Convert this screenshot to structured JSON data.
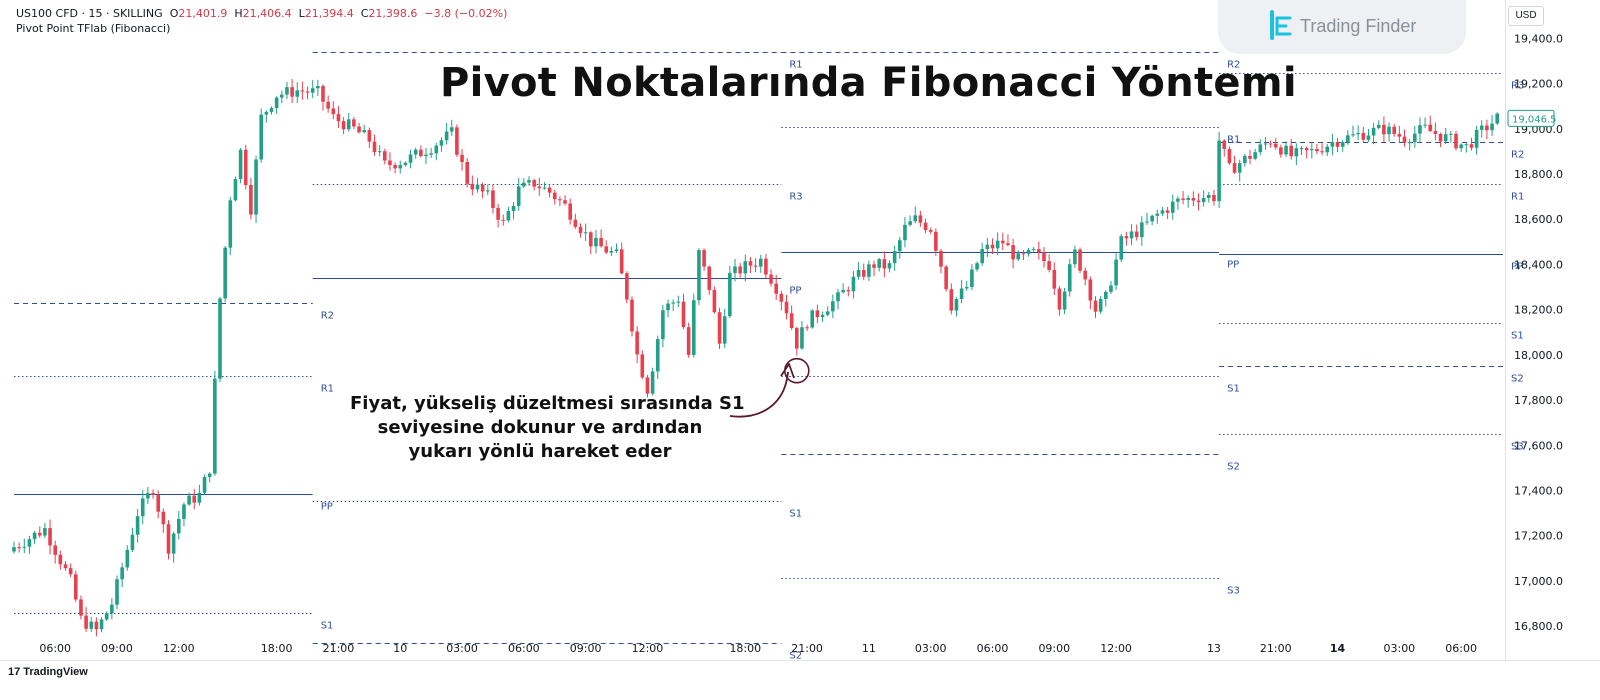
{
  "header": {
    "symbol": "US100 CFD · 15 · SKILLING",
    "o_label": "O",
    "o": "21,401.9",
    "h_label": "H",
    "h": "21,406.4",
    "l_label": "L",
    "l": "21,394.4",
    "c_label": "C",
    "c": "21,398.6",
    "change": "−3.8 (−0.02%)",
    "indicator": "Pivot Point TFlab (Fibonacci)"
  },
  "title": "Pivot Noktalarında Fibonacci Yöntemi",
  "annotation": {
    "lines": [
      "Fiyat, yükseliş düzeltmesi sırasında S1",
      "seviyesine dokunur ve ardından",
      "yukarı yönlü hareket eder"
    ]
  },
  "brand": {
    "name": "Trading Finder"
  },
  "currency": "USD",
  "footer": {
    "brand": "TradingView",
    "mark": "17"
  },
  "colors": {
    "up": "#22a087",
    "down": "#e8404f",
    "pivot": "#2e4d99",
    "price_badge": "#22a087"
  },
  "chart_data": {
    "type": "candlestick",
    "symbol": "US100 CFD",
    "timeframe": "15",
    "ylim": [
      16650,
      19570
    ],
    "y_ticks": [
      {
        "value": 19400,
        "label": "19,400.0"
      },
      {
        "value": 19200,
        "label": "19,200.0"
      },
      {
        "value": 19000,
        "label": "19,000.0"
      },
      {
        "value": 18800,
        "label": "18,800.0"
      },
      {
        "value": 18600,
        "label": "18,600.0"
      },
      {
        "value": 18400,
        "label": "18,400.0"
      },
      {
        "value": 18200,
        "label": "18,200.0"
      },
      {
        "value": 18000,
        "label": "18,000.0"
      },
      {
        "value": 17800,
        "label": "17,800.0"
      },
      {
        "value": 17600,
        "label": "17,600.0"
      },
      {
        "value": 17400,
        "label": "17,400.0"
      },
      {
        "value": 17200,
        "label": "17,200.0"
      },
      {
        "value": 17000,
        "label": "17,000.0"
      },
      {
        "value": 16800,
        "label": "16,800.0"
      }
    ],
    "x_ticks": [
      {
        "index": 8,
        "label": "06:00",
        "bold": false
      },
      {
        "index": 20,
        "label": "09:00",
        "bold": false
      },
      {
        "index": 32,
        "label": "12:00",
        "bold": false
      },
      {
        "index": 51,
        "label": "18:00",
        "bold": false
      },
      {
        "index": 63,
        "label": "21:00",
        "bold": false
      },
      {
        "index": 75,
        "label": "10",
        "bold": false
      },
      {
        "index": 87,
        "label": "03:00",
        "bold": false
      },
      {
        "index": 99,
        "label": "06:00",
        "bold": false
      },
      {
        "index": 111,
        "label": "09:00",
        "bold": false
      },
      {
        "index": 123,
        "label": "12:00",
        "bold": false
      },
      {
        "index": 142,
        "label": "18:00",
        "bold": false
      },
      {
        "index": 154,
        "label": "21:00",
        "bold": false
      },
      {
        "index": 166,
        "label": "11",
        "bold": false
      },
      {
        "index": 178,
        "label": "03:00",
        "bold": false
      },
      {
        "index": 190,
        "label": "06:00",
        "bold": false
      },
      {
        "index": 202,
        "label": "09:00",
        "bold": false
      },
      {
        "index": 214,
        "label": "12:00",
        "bold": false
      },
      {
        "index": 233,
        "label": "13",
        "bold": false
      },
      {
        "index": 245,
        "label": "21:00",
        "bold": false
      },
      {
        "index": 257,
        "label": "14",
        "bold": true
      },
      {
        "index": 269,
        "label": "03:00",
        "bold": false
      },
      {
        "index": 281,
        "label": "06:00",
        "bold": false
      }
    ],
    "last_price": {
      "value": 19046.5,
      "label": "19,046.5"
    },
    "pivot_periods": [
      {
        "x_start": 0,
        "x_end": 58,
        "levels": [
          {
            "name": "R2",
            "value": 18230,
            "label": "R2",
            "style": "dashed"
          },
          {
            "name": "R1",
            "value": 17905,
            "label": "R1",
            "style": "dotted"
          },
          {
            "name": "PP",
            "value": 17383,
            "label": "PP",
            "style": "solid"
          },
          {
            "name": "S1",
            "value": 16860,
            "label": "S1",
            "style": "dotted"
          }
        ]
      },
      {
        "x_start": 58,
        "x_end": 149,
        "levels": [
          {
            "name": "R1",
            "value": 19340,
            "label": "R1",
            "style": "dashed"
          },
          {
            "name": "R3",
            "value": 18758,
            "label": "R3",
            "style": "dotted"
          },
          {
            "name": "PP",
            "value": 18340,
            "label": "PP",
            "style": "solid"
          },
          {
            "name": "S1",
            "value": 17355,
            "label": "S1",
            "style": "dotted"
          },
          {
            "name": "S2",
            "value": 16727,
            "label": "S2",
            "style": "dashed"
          }
        ]
      },
      {
        "x_start": 149,
        "x_end": 234,
        "levels": [
          {
            "name": "R2",
            "value": 19340,
            "label": "R2",
            "style": "dashed"
          },
          {
            "name": "R1",
            "value": 19010,
            "label": "R1",
            "style": "dotted"
          },
          {
            "name": "PP",
            "value": 18455,
            "label": "PP",
            "style": "solid"
          },
          {
            "name": "S1",
            "value": 17905,
            "label": "S1",
            "style": "dotted"
          },
          {
            "name": "S2",
            "value": 17560,
            "label": "S2",
            "style": "dashed"
          },
          {
            "name": "S3",
            "value": 17015,
            "label": "S3",
            "style": "dotted"
          }
        ]
      },
      {
        "x_start": 234,
        "x_end": 290,
        "levels": [
          {
            "name": "R3",
            "value": 19245,
            "label": "R3",
            "style": "dotted"
          },
          {
            "name": "R2",
            "value": 18940,
            "label": "R2",
            "style": "dashed"
          },
          {
            "name": "R1",
            "value": 18758,
            "label": "R1",
            "style": "dotted"
          },
          {
            "name": "PP",
            "value": 18445,
            "label": "PP",
            "style": "solid"
          },
          {
            "name": "S1",
            "value": 18140,
            "label": "S1",
            "style": "dotted"
          },
          {
            "name": "S2",
            "value": 17950,
            "label": "S2",
            "style": "dashed"
          },
          {
            "name": "S3",
            "value": 17650,
            "label": "S3",
            "style": "dotted"
          }
        ]
      }
    ],
    "touch_marker": {
      "index": 152,
      "value": 17930
    },
    "keypoints": [
      [
        0,
        17150
      ],
      [
        6,
        17230
      ],
      [
        11,
        17000
      ],
      [
        13,
        16830
      ],
      [
        16,
        16780
      ],
      [
        19,
        16900
      ],
      [
        24,
        17300
      ],
      [
        27,
        17410
      ],
      [
        30,
        17150
      ],
      [
        33,
        17340
      ],
      [
        36,
        17380
      ],
      [
        38,
        17500
      ],
      [
        40,
        18250
      ],
      [
        42,
        18700
      ],
      [
        44,
        18900
      ],
      [
        46,
        18650
      ],
      [
        48,
        19050
      ],
      [
        51,
        19150
      ],
      [
        55,
        19170
      ],
      [
        59,
        19160
      ],
      [
        62,
        19050
      ],
      [
        66,
        19000
      ],
      [
        69,
        18950
      ],
      [
        72,
        18840
      ],
      [
        76,
        18860
      ],
      [
        81,
        18920
      ],
      [
        85,
        18980
      ],
      [
        88,
        18770
      ],
      [
        92,
        18700
      ],
      [
        95,
        18580
      ],
      [
        98,
        18730
      ],
      [
        101,
        18760
      ],
      [
        104,
        18720
      ],
      [
        107,
        18660
      ],
      [
        112,
        18500
      ],
      [
        117,
        18440
      ],
      [
        119,
        18260
      ],
      [
        121,
        18000
      ],
      [
        123,
        17850
      ],
      [
        124,
        17950
      ],
      [
        126,
        18200
      ],
      [
        129,
        18250
      ],
      [
        131,
        18000
      ],
      [
        133,
        18450
      ],
      [
        135,
        18300
      ],
      [
        137,
        18050
      ],
      [
        139,
        18350
      ],
      [
        142,
        18390
      ],
      [
        145,
        18420
      ],
      [
        148,
        18300
      ],
      [
        150,
        18200
      ],
      [
        152,
        18050
      ],
      [
        154,
        18150
      ],
      [
        157,
        18200
      ],
      [
        160,
        18250
      ],
      [
        163,
        18330
      ],
      [
        167,
        18400
      ],
      [
        170,
        18390
      ],
      [
        173,
        18560
      ],
      [
        175,
        18600
      ],
      [
        178,
        18560
      ],
      [
        180,
        18400
      ],
      [
        182,
        18220
      ],
      [
        185,
        18300
      ],
      [
        188,
        18460
      ],
      [
        192,
        18500
      ],
      [
        195,
        18420
      ],
      [
        198,
        18450
      ],
      [
        201,
        18400
      ],
      [
        203,
        18230
      ],
      [
        206,
        18450
      ],
      [
        208,
        18340
      ],
      [
        210,
        18200
      ],
      [
        212,
        18250
      ],
      [
        215,
        18500
      ],
      [
        219,
        18560
      ],
      [
        222,
        18620
      ],
      [
        226,
        18680
      ],
      [
        230,
        18700
      ],
      [
        233,
        18700
      ],
      [
        234,
        18950
      ],
      [
        236,
        18820
      ],
      [
        240,
        18880
      ],
      [
        244,
        18950
      ],
      [
        248,
        18880
      ],
      [
        252,
        18900
      ],
      [
        257,
        18950
      ],
      [
        262,
        18980
      ],
      [
        266,
        19000
      ],
      [
        270,
        18960
      ],
      [
        274,
        19000
      ],
      [
        278,
        18960
      ],
      [
        282,
        18920
      ],
      [
        285,
        18990
      ],
      [
        288,
        19046.5
      ]
    ]
  }
}
